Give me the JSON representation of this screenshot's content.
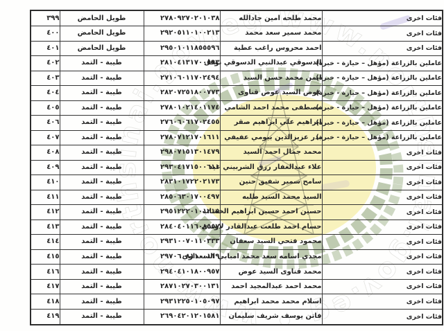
{
  "document": {
    "kind_label": "جدول أسماء (مستند ممسوح ضوئياً)"
  },
  "colors": {
    "ink": "#262626",
    "table_border": "#333333",
    "page_bg": "#fefefd",
    "seal_disc": "#f6efae",
    "seal_wreath": "#8ba173",
    "seal_derrick": "#73735f",
    "ring_text": "#ffffff",
    "smudge": "#8f7fd0"
  },
  "watermark": {
    "url_text": "www.northsinai.gov.eg",
    "ring_text": "www.northsinai.gov.eg • www.northsinai.gov.eg • www.northsinai.gov.eg •"
  },
  "table": {
    "rows": [
      {
        "serial": "٣٩٩",
        "region": "طويل الحامض",
        "national_id": "٢٧٨٠٩٢٧٠٢٠١٠٣٨",
        "name": "محمد طلحه امين جادالله",
        "category": "فئات اخرى"
      },
      {
        "serial": "٤٠٠",
        "region": "طويل الحامض",
        "national_id": "٢٩٢٠٥١١٠١٠٠٢١٣",
        "name": "محمد سمير سعد محمد",
        "category": "فئات اخرى"
      },
      {
        "serial": "٤٠١",
        "region": "طويل الحامض",
        "national_id": "٢٩٥٠١٠١١٨٥٥٥٩٦",
        "name": "احمد محروس راغب عطية",
        "category": "فئات اخرى"
      },
      {
        "serial": "٤٠٢",
        "region": "طيبة - التمد",
        "national_id": "٢٨١٠٤١٣١٧٠٠٥٩٣",
        "name": "الدسوقي عبدالنبي الدسوقي نوفل",
        "category": "عاملين بالزراعة (مؤهل – حيازة - خبرة)"
      },
      {
        "serial": "٤٠٣",
        "region": "طيبة - التمد",
        "national_id": "٢٧١٠٦٠١١٧٠٢٤٩٤",
        "name": "ايمن محمد حسن السيد",
        "category": "عاملين بالزراعة (مؤهل – حيازة - خبرة)"
      },
      {
        "serial": "٤٠٤",
        "region": "طيبة - التمد",
        "national_id": "٢٨٢٠٧٢٥١٨٠٠٧٧٣",
        "name": "عوض السيد عوض قناوى",
        "category": "عاملين بالزراعة (مؤهل – حيازة - خبرة)"
      },
      {
        "serial": "٤٠٥",
        "region": "طيبة - التمد",
        "national_id": "٢٧٨٠١٠٢١٤٠١١٧٤",
        "name": "مصطفى محمد احمد الشامي",
        "category": "عاملين بالزراعة (مؤهل – حيازة - خبرة)"
      },
      {
        "serial": "٤٠٦",
        "region": "طيبة - التمد",
        "national_id": "٢٧٦٠٦٠٦١٧٠٢٤٥٥",
        "name": "ابراهيم علي ابراهيم صقر",
        "category": "عاملين بالزراعة (مؤهل – حيازة - خبرة)"
      },
      {
        "serial": "٤٠٧",
        "region": "طيبة - التمد",
        "national_id": "٢٧٨٠٧١٢١٧٠١٦١١",
        "name": "بدر عزيزالدين بيومي عفيفي",
        "category": "عاملين بالزراعة (مؤهل – حيازة - خبرة)"
      },
      {
        "serial": "٤٠٨",
        "region": "طيبة - التمد",
        "national_id": "٢٩٨٠٧١٥١٣٠١٤٧٩",
        "name": "محمد جمال احمد السيد",
        "category": "فئات اخرى"
      },
      {
        "serial": "٤٠٩",
        "region": "طيبة - التمد",
        "national_id": "٢٩٣٠٤١٧١٥٠٠٦١١",
        "name": "علاء عبدالغفار رزق الشربيني عيد",
        "category": "فئات اخرى"
      },
      {
        "serial": "٤١٠",
        "region": "طيبة - التمد",
        "national_id": "٢٨٣١٠١٧٢٢٠٢١٧٣",
        "name": "سامح سمير شفيق حنين",
        "category": "فئات اخرى"
      },
      {
        "serial": "٤١١",
        "region": "طيبة - التمد",
        "national_id": "٢٨٥٠٦٣٠١٧٠٠٤٩٧",
        "name": "السيد محمد السيد طلبه",
        "category": "فئات اخرى"
      },
      {
        "serial": "٤١٢",
        "region": "طيبة - التمد",
        "national_id": "٢٩٥١٢٢٢٠١٠١٢١٥",
        "name": "حسين احمد حسين ابراهيم الخشاب",
        "category": "فئات اخرى"
      },
      {
        "serial": "٤١٣",
        "region": "طيبة - التمد",
        "national_id": "٢٨٤٠٤٠١١٦٠٨٥٥٧",
        "name": "حسام احمد طلعت عبدالقادر لاوندي",
        "category": "فئات اخرى"
      },
      {
        "serial": "٤١٤",
        "region": "طيبة - التمد",
        "national_id": "٢٩٣١٠٠٧٠١١٠٣٣٣",
        "name": "محمود فتحي السيد سعفان",
        "category": "فئات اخرى"
      },
      {
        "serial": "٤١٥",
        "region": "طيبة - التمد",
        "national_id": "٢٩٧٠٦٠٨١١٠٠١١٩",
        "name": "مجدي اسامه سعد محمد امبابي السعداوي",
        "category": "فئات اخرى"
      },
      {
        "serial": "٤١٦",
        "region": "طيبة - التمد",
        "national_id": "٢٩٤٠٤١٠١٨٠٠٩٥٧",
        "name": "محمد قناوى السيد عوض",
        "category": "فئات اخرى"
      },
      {
        "serial": "٤١٧",
        "region": "طيبة - التمد",
        "national_id": "٢٨٧١٠٢٧٠٣٠٠١٣١",
        "name": "محمد احمد عبدالمجيد احمد",
        "category": "فئات اخرى"
      },
      {
        "serial": "٤١٨",
        "region": "طيبة - التمد",
        "national_id": "٢٩٣١٢٢٥٠١٠٥٠٩٧",
        "name": "اسلام محمد محمد ابراهيم",
        "category": "فئات اخرى"
      },
      {
        "serial": "٤١٩",
        "region": "طيبة - التمد",
        "national_id": "٢٦٩٠٤٢٠١٢٠١٥٨١",
        "name": "فاتن يوسف شريف سليمان",
        "category": "فئات اخرى"
      }
    ]
  }
}
